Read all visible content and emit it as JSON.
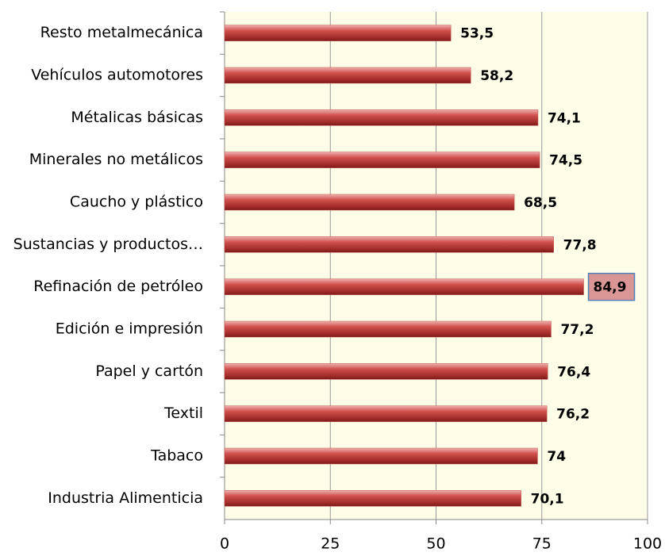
{
  "chart_data": {
    "type": "barh",
    "categories": [
      "Resto metalmecánica",
      "Vehículos automotores",
      "Métalicas básicas",
      "Minerales no metálicos",
      "Caucho y plástico",
      "Sustancias y productos…",
      "Refinación de petróleo",
      "Edición e impresión",
      "Papel y cartón",
      "Textil",
      "Tabaco",
      "Industria Alimenticia"
    ],
    "values": [
      53.5,
      58.2,
      74.1,
      74.5,
      68.5,
      77.8,
      84.9,
      77.2,
      76.4,
      76.2,
      74,
      70.1
    ],
    "value_labels": [
      "53,5",
      "58,2",
      "74,1",
      "74,5",
      "68,5",
      "77,8",
      "84,9",
      "77,2",
      "76,4",
      "76,2",
      "74",
      "70,1"
    ],
    "color": "#c0504d",
    "xlim": [
      0,
      100
    ],
    "xticks": [
      0,
      25,
      50,
      75,
      100
    ],
    "grid": true,
    "highlight_index": 6,
    "highlight_color": "#d99694"
  }
}
